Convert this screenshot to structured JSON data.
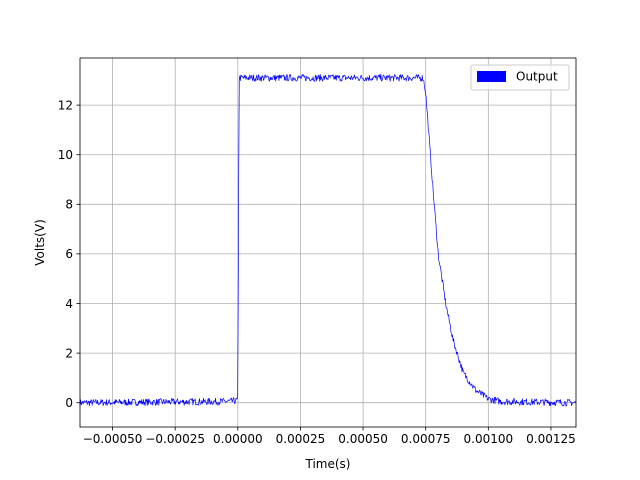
{
  "chart_data": {
    "type": "line",
    "title": "",
    "xlabel": "Time(s)",
    "ylabel": "Volts(V)",
    "xlim": [
      -0.00063,
      0.00135
    ],
    "ylim": [
      -0.98,
      13.9
    ],
    "grid": true,
    "legend_position": "top-right",
    "x_ticks": [
      -0.0005,
      -0.00025,
      0.0,
      0.00025,
      0.0005,
      0.00075,
      0.001,
      0.00125
    ],
    "x_tick_labels": [
      "−0.00050",
      "−0.00025",
      "0.00000",
      "0.00025",
      "0.00050",
      "0.00075",
      "0.00100",
      "0.00125"
    ],
    "y_ticks": [
      0,
      2,
      4,
      6,
      8,
      10,
      12
    ],
    "y_tick_labels": [
      "0",
      "2",
      "4",
      "6",
      "8",
      "10",
      "12"
    ],
    "colors": {
      "series": "#0000ff",
      "grid": "#b0b0b0",
      "axes": "#000000"
    },
    "series": [
      {
        "name": "Output",
        "description_points": [
          [
            -0.00063,
            0.0
          ],
          [
            -2.5e-05,
            0.05
          ],
          [
            0.0,
            0.1
          ],
          [
            5e-06,
            13.1
          ],
          [
            0.00074,
            13.1
          ],
          [
            0.00075,
            12.5
          ],
          [
            0.00078,
            8.5
          ],
          [
            0.0008,
            6.0
          ],
          [
            0.00083,
            4.0
          ],
          [
            0.00086,
            2.5
          ],
          [
            0.0009,
            1.2
          ],
          [
            0.00095,
            0.5
          ],
          [
            0.001,
            0.15
          ],
          [
            0.00105,
            0.05
          ],
          [
            0.00135,
            0.0
          ]
        ]
      }
    ]
  }
}
